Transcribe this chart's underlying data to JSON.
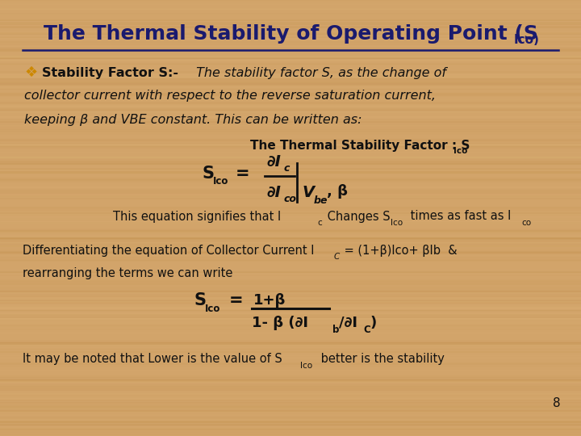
{
  "bg_color": "#D2A46A",
  "title_color": "#1a1a6e",
  "text_color": "#111111",
  "bullet_color": "#cc8800",
  "bg_grain_color1": "#C8943A",
  "bg_grain_color2": "#E0B878",
  "title_main": "The Thermal Stability of Operating Point (S",
  "title_sub": "Ico)",
  "slide_number": "8"
}
